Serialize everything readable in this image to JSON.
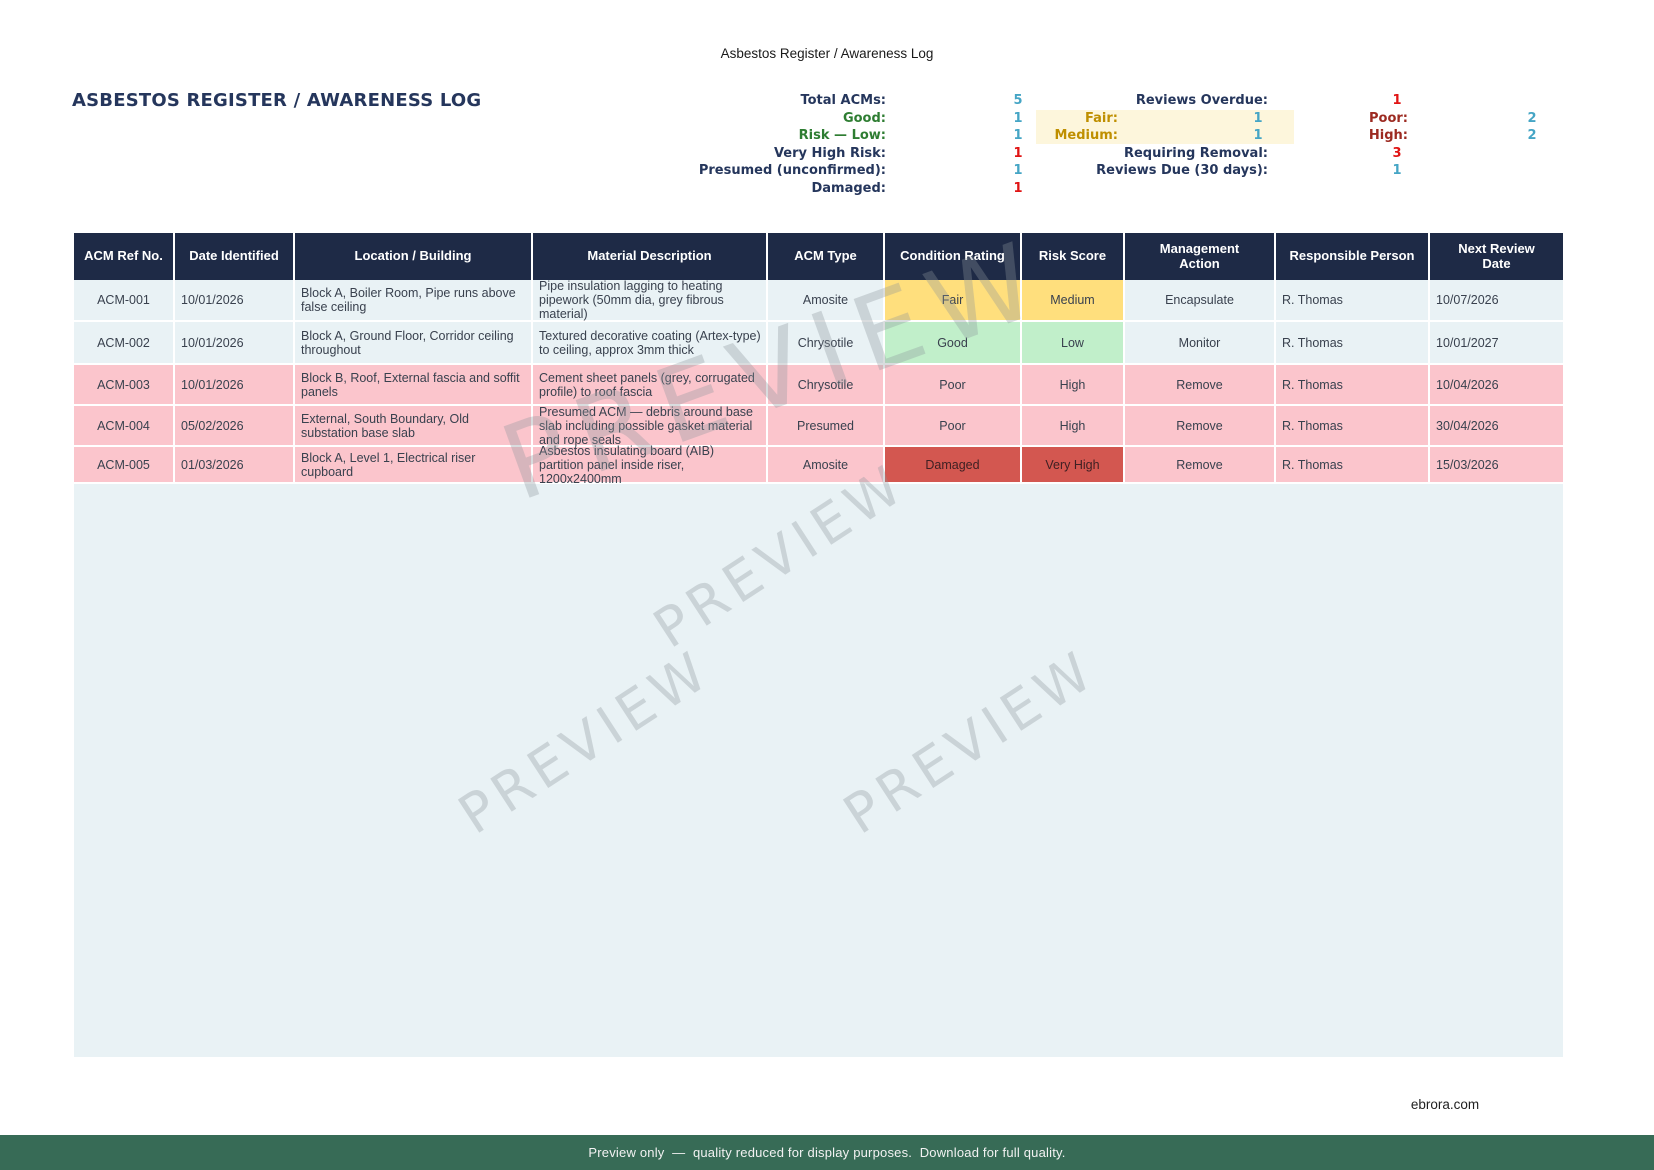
{
  "title_bar": "Asbestos Register / Awareness Log",
  "heading": "ASBESTOS REGISTER / AWARENESS LOG",
  "colors": {
    "navy": "#25365c",
    "green": "#2e7d32",
    "gold": "#bf8f00",
    "darkred": "#9c2a21",
    "blue_value": "#45a5c5",
    "red_value": "#e01414",
    "highlight_bg": "#fdf6dc",
    "header_bg": "#1e2a46",
    "header_text": "#ffffff",
    "row_blue": "#e9f2f5",
    "row_pink": "#fbc5cc",
    "cell_yellow": "#ffdf7d",
    "cell_green": "#c1efca",
    "cell_red": "#d35750",
    "cell_red_text": "#3f2023",
    "body_text": "#39414e",
    "footer_bg": "#376b56"
  },
  "summary": {
    "cells": [
      {
        "row": 0,
        "slot": "a",
        "label": "Total ACMs:",
        "value": "5",
        "label_tone": "navy",
        "value_tone": "blue",
        "highlight": false
      },
      {
        "row": 0,
        "slot": "c",
        "label": "Reviews Overdue:",
        "value": "1",
        "label_tone": "navy",
        "value_tone": "red",
        "highlight": false
      },
      {
        "row": 1,
        "slot": "a",
        "label": "Good:",
        "value": "1",
        "label_tone": "green",
        "value_tone": "blue",
        "highlight": false
      },
      {
        "row": 1,
        "slot": "b",
        "label": "Fair:",
        "value": "1",
        "label_tone": "gold",
        "value_tone": "blue",
        "highlight": true
      },
      {
        "row": 1,
        "slot": "d",
        "label": "Poor:",
        "value": "2",
        "label_tone": "darkred",
        "value_tone": "blue",
        "highlight": false
      },
      {
        "row": 2,
        "slot": "a",
        "label": "Risk — Low:",
        "value": "1",
        "label_tone": "green",
        "value_tone": "blue",
        "highlight": false
      },
      {
        "row": 2,
        "slot": "b",
        "label": "Medium:",
        "value": "1",
        "label_tone": "gold",
        "value_tone": "blue",
        "highlight": true
      },
      {
        "row": 2,
        "slot": "d",
        "label": "High:",
        "value": "2",
        "label_tone": "darkred",
        "value_tone": "blue",
        "highlight": false
      },
      {
        "row": 3,
        "slot": "a",
        "label": "Very High Risk:",
        "value": "1",
        "label_tone": "navy",
        "value_tone": "red",
        "highlight": false
      },
      {
        "row": 3,
        "slot": "c",
        "label": "Requiring Removal:",
        "value": "3",
        "label_tone": "navy",
        "value_tone": "red",
        "highlight": false
      },
      {
        "row": 4,
        "slot": "a",
        "label": "Presumed (unconfirmed):",
        "value": "1",
        "label_tone": "navy",
        "value_tone": "blue",
        "highlight": false
      },
      {
        "row": 4,
        "slot": "c",
        "label": "Reviews Due (30 days):",
        "value": "1",
        "label_tone": "navy",
        "value_tone": "blue",
        "highlight": false
      },
      {
        "row": 5,
        "slot": "a",
        "label": "Damaged:",
        "value": "1",
        "label_tone": "navy",
        "value_tone": "red",
        "highlight": false
      }
    ]
  },
  "table": {
    "headers": [
      "ACM Ref No.",
      "Date Identified",
      "Location / Building",
      "Material Description",
      "ACM Type",
      "Condition Rating",
      "Risk Score",
      "Management Action",
      "Responsible Person",
      "Next Review Date"
    ],
    "rows": [
      {
        "ref": "ACM-001",
        "date": "10/01/2026",
        "location": "Block A, Boiler Room, Pipe runs above false ceiling",
        "material": "Pipe insulation lagging to heating pipework (50mm dia, grey fibrous material)",
        "acm_type": "Amosite",
        "condition": "Fair",
        "risk": "Medium",
        "action": "Encapsulate",
        "person": "R. Thomas",
        "next_review": "10/07/2026",
        "row_tone": "blue",
        "rating_tone": "yellow"
      },
      {
        "ref": "ACM-002",
        "date": "10/01/2026",
        "location": "Block A, Ground Floor, Corridor ceiling throughout",
        "material": "Textured decorative coating (Artex-type) to ceiling, approx 3mm thick",
        "acm_type": "Chrysotile",
        "condition": "Good",
        "risk": "Low",
        "action": "Monitor",
        "person": "R. Thomas",
        "next_review": "10/01/2027",
        "row_tone": "blue",
        "rating_tone": "green"
      },
      {
        "ref": "ACM-003",
        "date": "10/01/2026",
        "location": "Block B, Roof, External fascia and soffit panels",
        "material": "Cement sheet panels (grey, corrugated profile) to roof fascia",
        "acm_type": "Chrysotile",
        "condition": "Poor",
        "risk": "High",
        "action": "Remove",
        "person": "R. Thomas",
        "next_review": "10/04/2026",
        "row_tone": "pink",
        "rating_tone": null
      },
      {
        "ref": "ACM-004",
        "date": "05/02/2026",
        "location": "External, South Boundary, Old substation base slab",
        "material": "Presumed ACM — debris around base slab including possible gasket material and rope seals",
        "acm_type": "Presumed",
        "condition": "Poor",
        "risk": "High",
        "action": "Remove",
        "person": "R. Thomas",
        "next_review": "30/04/2026",
        "row_tone": "pink",
        "rating_tone": null
      },
      {
        "ref": "ACM-005",
        "date": "01/03/2026",
        "location": "Block A, Level 1, Electrical riser cupboard",
        "material": "Asbestos insulating board (AIB) partition panel inside riser, 1200x2400mm",
        "acm_type": "Amosite",
        "condition": "Damaged",
        "risk": "Very High",
        "action": "Remove",
        "person": "R. Thomas",
        "next_review": "15/03/2026",
        "row_tone": "pink",
        "rating_tone": "red"
      }
    ]
  },
  "watermark_text": "PREVIEW",
  "footer": {
    "site": "ebrora.com",
    "preview_notice": "Preview only  —  quality reduced for display purposes.  Download for full quality."
  }
}
